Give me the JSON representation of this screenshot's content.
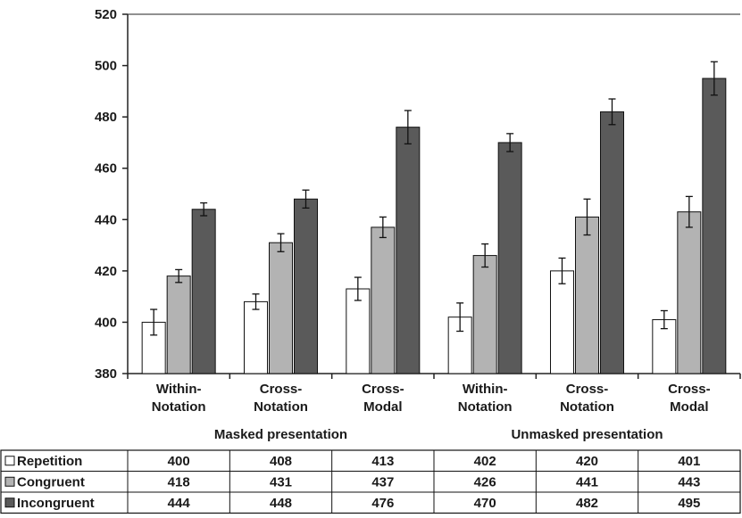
{
  "chart_data": {
    "type": "bar",
    "ylim": [
      380,
      520
    ],
    "yticks": [
      380,
      400,
      420,
      440,
      460,
      480,
      500,
      520
    ],
    "categories": [
      [
        "Within-",
        "Notation"
      ],
      [
        "Cross-",
        "Notation"
      ],
      [
        "Cross-",
        "Modal"
      ],
      [
        "Within-",
        "Notation"
      ],
      [
        "Cross-",
        "Notation"
      ],
      [
        "Cross-",
        "Modal"
      ]
    ],
    "groups": [
      "Masked presentation",
      "Unmasked presentation"
    ],
    "series": [
      {
        "name": "Repetition",
        "color": "#ffffff",
        "values": [
          400,
          408,
          413,
          402,
          420,
          401
        ],
        "errors": [
          5,
          3,
          4.5,
          5.5,
          5,
          3.5
        ]
      },
      {
        "name": "Congruent",
        "color": "#b3b3b3",
        "values": [
          418,
          431,
          437,
          426,
          441,
          443
        ],
        "errors": [
          2.5,
          3.5,
          4,
          4.5,
          7,
          6
        ]
      },
      {
        "name": "Incongruent",
        "color": "#5a5a5a",
        "values": [
          444,
          448,
          476,
          470,
          482,
          495
        ],
        "errors": [
          2.5,
          3.5,
          6.5,
          3.5,
          5,
          6.5
        ]
      }
    ],
    "grid": false,
    "legend": "table-below"
  }
}
